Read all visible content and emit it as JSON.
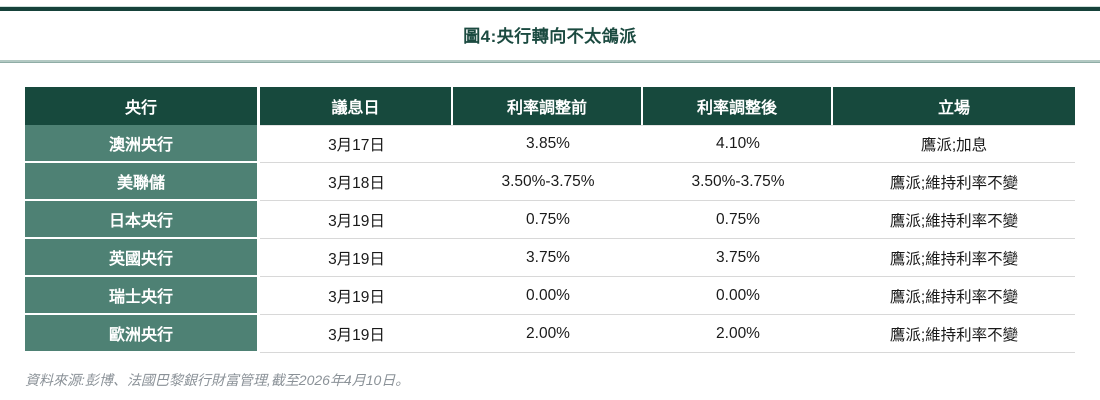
{
  "figure": {
    "title": "圖4:央行轉向不太鴿派",
    "source_note": "資料來源:彭博、法國巴黎銀行財富管理,截至2026年4月10日。"
  },
  "chart_data": {
    "type": "table",
    "title": "圖4:央行轉向不太鴿派",
    "columns": [
      "央行",
      "議息日",
      "利率調整前",
      "利率調整後",
      "立場"
    ],
    "rows": [
      [
        "澳洲央行",
        "3月17日",
        "3.85%",
        "4.10%",
        "鷹派;加息"
      ],
      [
        "美聯儲",
        "3月18日",
        "3.50%-3.75%",
        "3.50%-3.75%",
        "鷹派;維持利率不變"
      ],
      [
        "日本央行",
        "3月19日",
        "0.75%",
        "0.75%",
        "鷹派;維持利率不變"
      ],
      [
        "英國央行",
        "3月19日",
        "3.75%",
        "3.75%",
        "鷹派;維持利率不變"
      ],
      [
        "瑞士央行",
        "3月19日",
        "0.00%",
        "0.00%",
        "鷹派;維持利率不變"
      ],
      [
        "歐洲央行",
        "3月19日",
        "2.00%",
        "2.00%",
        "鷹派;維持利率不變"
      ]
    ],
    "source": "資料來源:彭博、法國巴黎銀行財富管理,截至2026年4月10日。",
    "layout": {
      "grid": "horizontal-row-dividers",
      "legend": "none"
    }
  },
  "colors": {
    "header_bg": "#17493d",
    "bank_column_bg": "#4e8174",
    "title_text": "#1b4a40",
    "rule_dark": "#16423a",
    "rule_light": "#b3c9c3",
    "row_divider": "#d8d8d8",
    "source_text": "#8b9298"
  }
}
